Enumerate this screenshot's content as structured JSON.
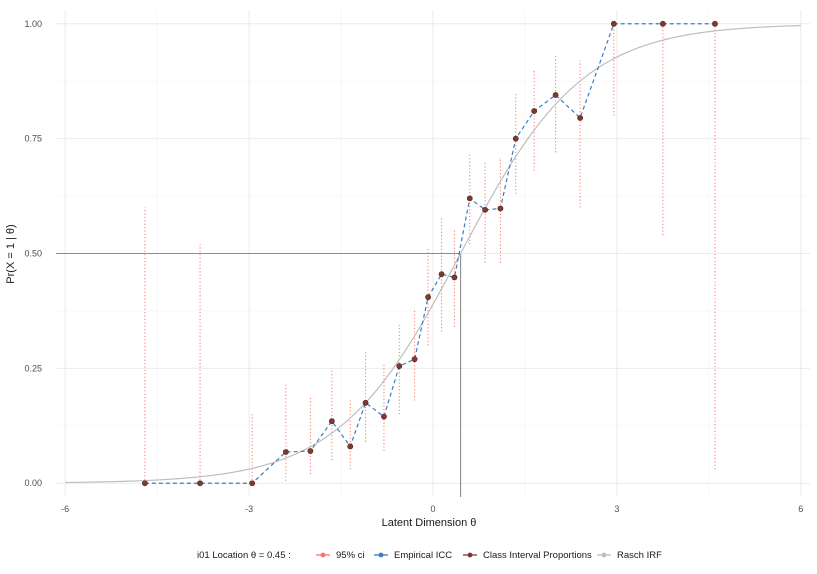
{
  "chart_data": {
    "type": "line",
    "xlabel": "Latent Dimension θ",
    "ylabel": "Pr(X = 1 | θ)",
    "xlim": [
      -6.15,
      6.15
    ],
    "ylim": [
      -0.03,
      1.03
    ],
    "xticks": [
      -6,
      -3,
      0,
      3,
      6
    ],
    "xtick_labels": [
      "-6",
      "-3",
      "0",
      "3",
      "6"
    ],
    "yticks": [
      0,
      0.25,
      0.5,
      0.75,
      1
    ],
    "ytick_labels": [
      "0.00",
      "0.25",
      "0.50",
      "0.75",
      "1.00"
    ],
    "grid": true,
    "legend_position": "bottom",
    "legend_title": "i01 Location  θ = 0.45 :",
    "location": 0.45,
    "series": [
      {
        "name": "95% ci",
        "color": "#f8766d",
        "lower": [
          0.0,
          0.0,
          0.0,
          0.005,
          0.02,
          0.05,
          0.03,
          0.09,
          0.07,
          0.15,
          0.18,
          0.3,
          0.33,
          0.34,
          0.52,
          0.48,
          0.48,
          0.63,
          0.68,
          0.72,
          0.6,
          0.8,
          0.54,
          0.03
        ],
        "upper": [
          0.6,
          0.52,
          0.15,
          0.22,
          0.19,
          0.25,
          0.18,
          0.29,
          0.26,
          0.35,
          0.38,
          0.51,
          0.58,
          0.55,
          0.72,
          0.7,
          0.71,
          0.85,
          0.9,
          0.93,
          0.92,
          1.0,
          1.0,
          1.0
        ]
      },
      {
        "name": "Empirical ICC",
        "color": "#3c7dbf"
      },
      {
        "name": "Class Interval Proportions",
        "color": "#7f3a2e",
        "x": [
          -4.7,
          -3.8,
          -2.95,
          -2.4,
          -2.0,
          -1.65,
          -1.35,
          -1.1,
          -0.8,
          -0.55,
          -0.3,
          -0.08,
          0.14,
          0.35,
          0.6,
          0.85,
          1.1,
          1.35,
          1.65,
          2.0,
          2.4,
          2.95,
          3.75,
          4.6
        ],
        "y": [
          0.0,
          0.0,
          0.0,
          0.068,
          0.07,
          0.135,
          0.08,
          0.175,
          0.145,
          0.255,
          0.27,
          0.405,
          0.455,
          0.448,
          0.62,
          0.595,
          0.598,
          0.75,
          0.81,
          0.845,
          0.795,
          1.0,
          1.0,
          1.0
        ]
      },
      {
        "name": "Rasch IRF",
        "color": "#bebebe",
        "location": 0.45,
        "x_range": [
          -6,
          6
        ]
      }
    ]
  }
}
